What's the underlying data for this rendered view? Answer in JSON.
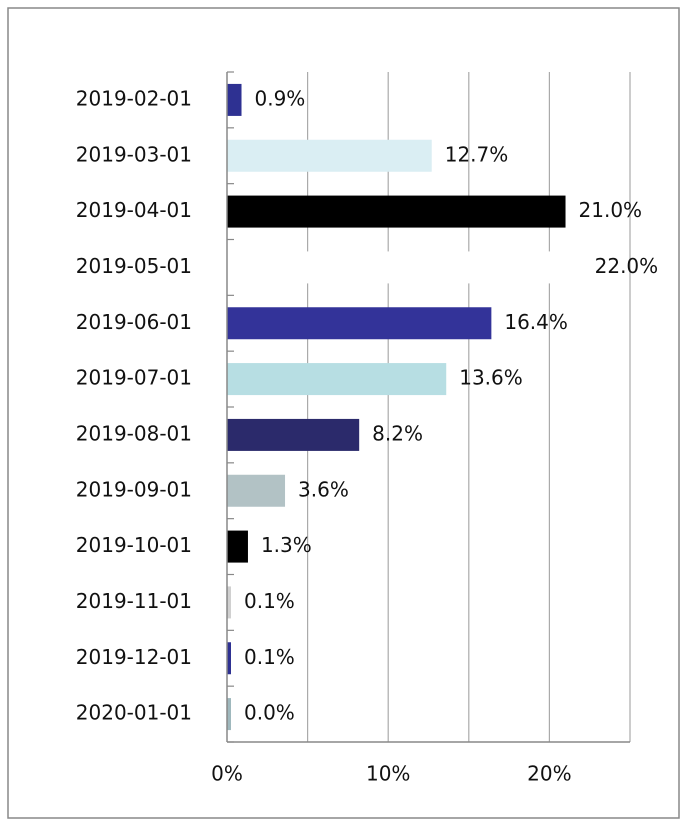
{
  "chart_data": {
    "type": "bar",
    "orientation": "horizontal",
    "categories": [
      "2019-02-01",
      "2019-03-01",
      "2019-04-01",
      "2019-05-01",
      "2019-06-01",
      "2019-07-01",
      "2019-08-01",
      "2019-09-01",
      "2019-10-01",
      "2019-11-01",
      "2019-12-01",
      "2020-01-01"
    ],
    "values": [
      0.9,
      12.7,
      21.0,
      22.0,
      16.4,
      13.6,
      8.2,
      3.6,
      1.3,
      0.1,
      0.1,
      0.0
    ],
    "value_labels": [
      "0.9%",
      "12.7%",
      "21.0%",
      "22.0%",
      "16.4%",
      "13.6%",
      "8.2%",
      "3.6%",
      "1.3%",
      "0.1%",
      "0.1%",
      "0.0%"
    ],
    "colors": [
      "#2e3192",
      "#daeef3",
      "#000000",
      "#ffffff",
      "#333399",
      "#b7dee3",
      "#2b2a6b",
      "#b2c2c5",
      "#000000",
      "#d0d0d0",
      "#2e3192",
      "#9fb8bd"
    ],
    "xlim": [
      0,
      25
    ],
    "xticks": [
      {
        "value": 0,
        "label": "0%"
      },
      {
        "value": 10,
        "label": "10%"
      },
      {
        "value": 20,
        "label": "20%"
      }
    ],
    "minor_xticks": [
      5,
      15,
      25
    ],
    "grid": true
  }
}
